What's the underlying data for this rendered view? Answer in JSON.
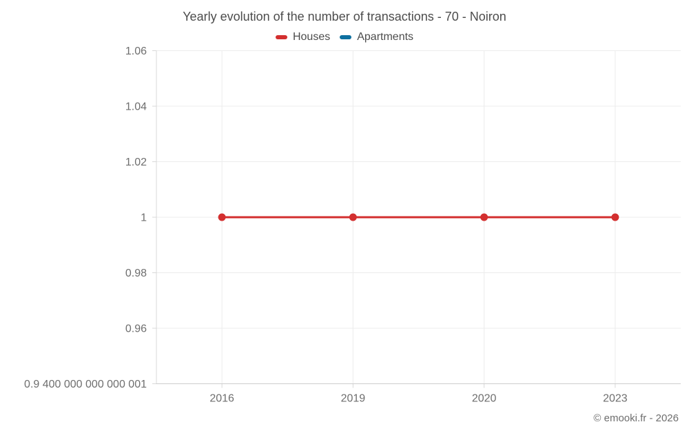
{
  "chart_data": {
    "type": "line",
    "title": "Yearly evolution of the number of transactions - 70 - Noiron",
    "xlabel": "",
    "ylabel": "",
    "categories": [
      "2016",
      "2019",
      "2020",
      "2023"
    ],
    "series": [
      {
        "name": "Houses",
        "color": "#d32f2f",
        "values": [
          1,
          1,
          1,
          1
        ]
      },
      {
        "name": "Apartments",
        "color": "#0e70a0",
        "values": []
      }
    ],
    "ylim": [
      0.9400000000000001,
      1.06
    ],
    "y_ticks": [
      {
        "value": 1.06,
        "label": "1.06"
      },
      {
        "value": 1.04,
        "label": "1.04"
      },
      {
        "value": 1.02,
        "label": "1.02"
      },
      {
        "value": 1,
        "label": "1"
      },
      {
        "value": 0.98,
        "label": "0.98"
      },
      {
        "value": 0.96,
        "label": "0.96"
      },
      {
        "value": 0.9400000000000001,
        "label": "0.9 400 000 000 000 001"
      }
    ],
    "grid": true,
    "legend_position": "top"
  },
  "attribution": {
    "text": "© emooki.fr - 2026"
  }
}
